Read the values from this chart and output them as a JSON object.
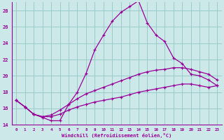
{
  "xlabel": "Windchill (Refroidissement éolien,°C)",
  "background_color": "#cce8e8",
  "line_color": "#990099",
  "grid_color": "#99cccc",
  "xlim": [
    -0.5,
    23.5
  ],
  "ylim": [
    14,
    29
  ],
  "xticks": [
    0,
    1,
    2,
    3,
    4,
    5,
    6,
    7,
    8,
    9,
    10,
    11,
    12,
    13,
    14,
    15,
    16,
    17,
    18,
    19,
    20,
    21,
    22,
    23
  ],
  "yticks": [
    14,
    16,
    18,
    20,
    22,
    24,
    26,
    28
  ],
  "series": [
    {
      "x": [
        0,
        1,
        2,
        3,
        4,
        5,
        6,
        7,
        8,
        9,
        10,
        11,
        12,
        13,
        14,
        15,
        16,
        17,
        18,
        19,
        20,
        21,
        22,
        23
      ],
      "y": [
        17.0,
        16.2,
        15.3,
        14.9,
        14.5,
        14.5,
        16.5,
        18.0,
        20.3,
        23.2,
        25.0,
        26.7,
        27.8,
        28.5,
        29.2,
        26.5,
        25.0,
        24.2,
        22.2,
        21.5,
        20.2,
        20.0,
        19.5,
        18.8
      ]
    },
    {
      "x": [
        0,
        1,
        2,
        3,
        4,
        5,
        6,
        7,
        8,
        9,
        10,
        11,
        12,
        13,
        14,
        15,
        16,
        17,
        18,
        19,
        20,
        21,
        22,
        23
      ],
      "y": [
        17.0,
        16.2,
        15.3,
        15.0,
        15.2,
        15.8,
        16.5,
        17.2,
        17.8,
        18.2,
        18.6,
        19.0,
        19.4,
        19.8,
        20.2,
        20.5,
        20.7,
        20.8,
        21.0,
        21.0,
        20.8,
        20.5,
        20.2,
        19.5
      ]
    },
    {
      "x": [
        0,
        1,
        2,
        3,
        4,
        5,
        6,
        7,
        8,
        9,
        10,
        11,
        12,
        13,
        14,
        15,
        16,
        17,
        18,
        19,
        20,
        21,
        22,
        23
      ],
      "y": [
        17.0,
        16.2,
        15.3,
        15.0,
        15.0,
        15.3,
        15.8,
        16.2,
        16.5,
        16.8,
        17.0,
        17.2,
        17.4,
        17.7,
        18.0,
        18.2,
        18.4,
        18.6,
        18.8,
        19.0,
        19.0,
        18.8,
        18.6,
        18.8
      ]
    }
  ]
}
